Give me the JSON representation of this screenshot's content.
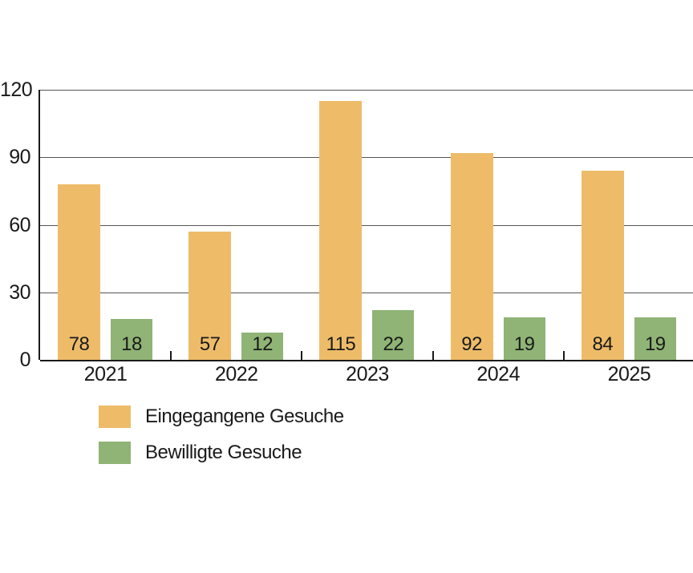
{
  "chart_data": {
    "type": "bar",
    "title": "",
    "xlabel": "",
    "ylabel": "",
    "categories": [
      "2021",
      "2022",
      "2023",
      "2024",
      "2025"
    ],
    "series": [
      {
        "name": "Eingegangene Gesuche",
        "color": "#eebc69",
        "values": [
          78,
          57,
          115,
          92,
          84
        ]
      },
      {
        "name": "Bewilligte Gesuche",
        "color": "#8fb475",
        "values": [
          18,
          12,
          22,
          19,
          19
        ]
      }
    ],
    "ylim": [
      0,
      120
    ],
    "yticks": [
      0,
      30,
      60,
      90,
      120
    ],
    "grid": true,
    "bar_value_labels": [
      78,
      18,
      57,
      12,
      115,
      22,
      92,
      19,
      84,
      19
    ],
    "legend_position": "bottom-left",
    "colors": {
      "bar_orange": "#eebc69",
      "bar_green": "#8fb475",
      "axis": "#1a1a1a",
      "gridline": "#555555",
      "text": "#1a1a1a",
      "background": "#ffffff"
    }
  }
}
